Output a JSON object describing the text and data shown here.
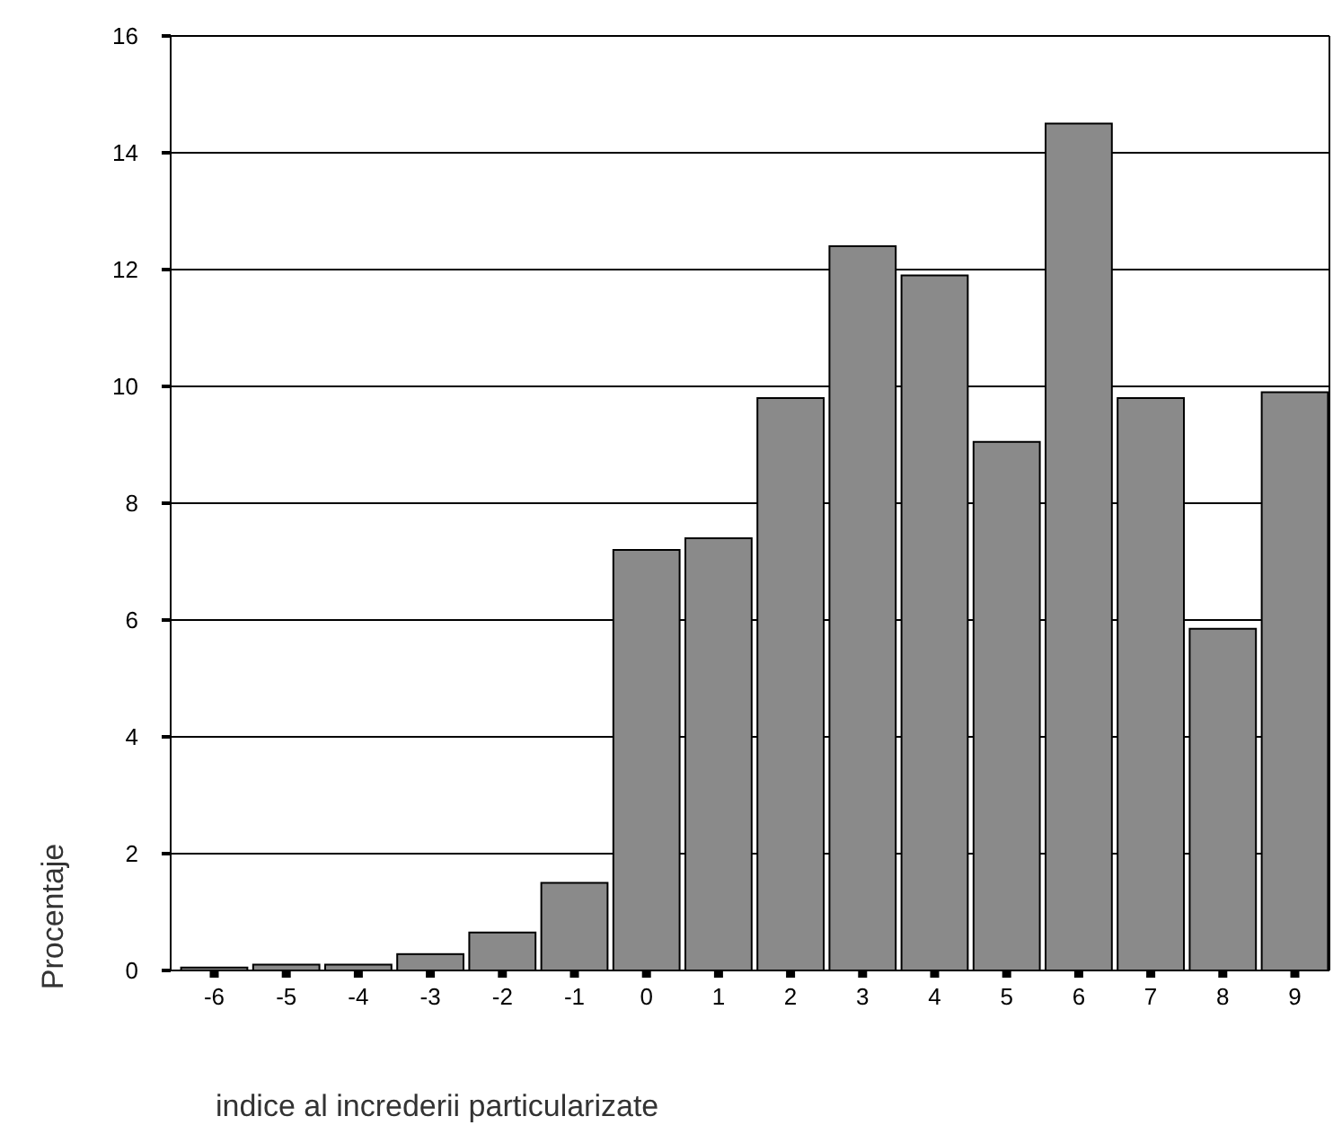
{
  "chart_data": {
    "type": "bar",
    "xlabel": "indice al increderii particularizate",
    "ylabel": "Procentaje",
    "categories": [
      "-6",
      "-5",
      "-4",
      "-3",
      "-2",
      "-1",
      "0",
      "1",
      "2",
      "3",
      "4",
      "5",
      "6",
      "7",
      "8",
      "9"
    ],
    "values": [
      0.05,
      0.1,
      0.1,
      0.28,
      0.65,
      1.5,
      7.2,
      7.4,
      9.8,
      12.4,
      11.9,
      9.05,
      14.5,
      9.8,
      5.85,
      9.9
    ],
    "color": "#8a8a8a",
    "ylim": [
      0,
      16
    ],
    "yticks": [
      0,
      2,
      4,
      6,
      8,
      10,
      12,
      14,
      16
    ],
    "grid": "y"
  }
}
